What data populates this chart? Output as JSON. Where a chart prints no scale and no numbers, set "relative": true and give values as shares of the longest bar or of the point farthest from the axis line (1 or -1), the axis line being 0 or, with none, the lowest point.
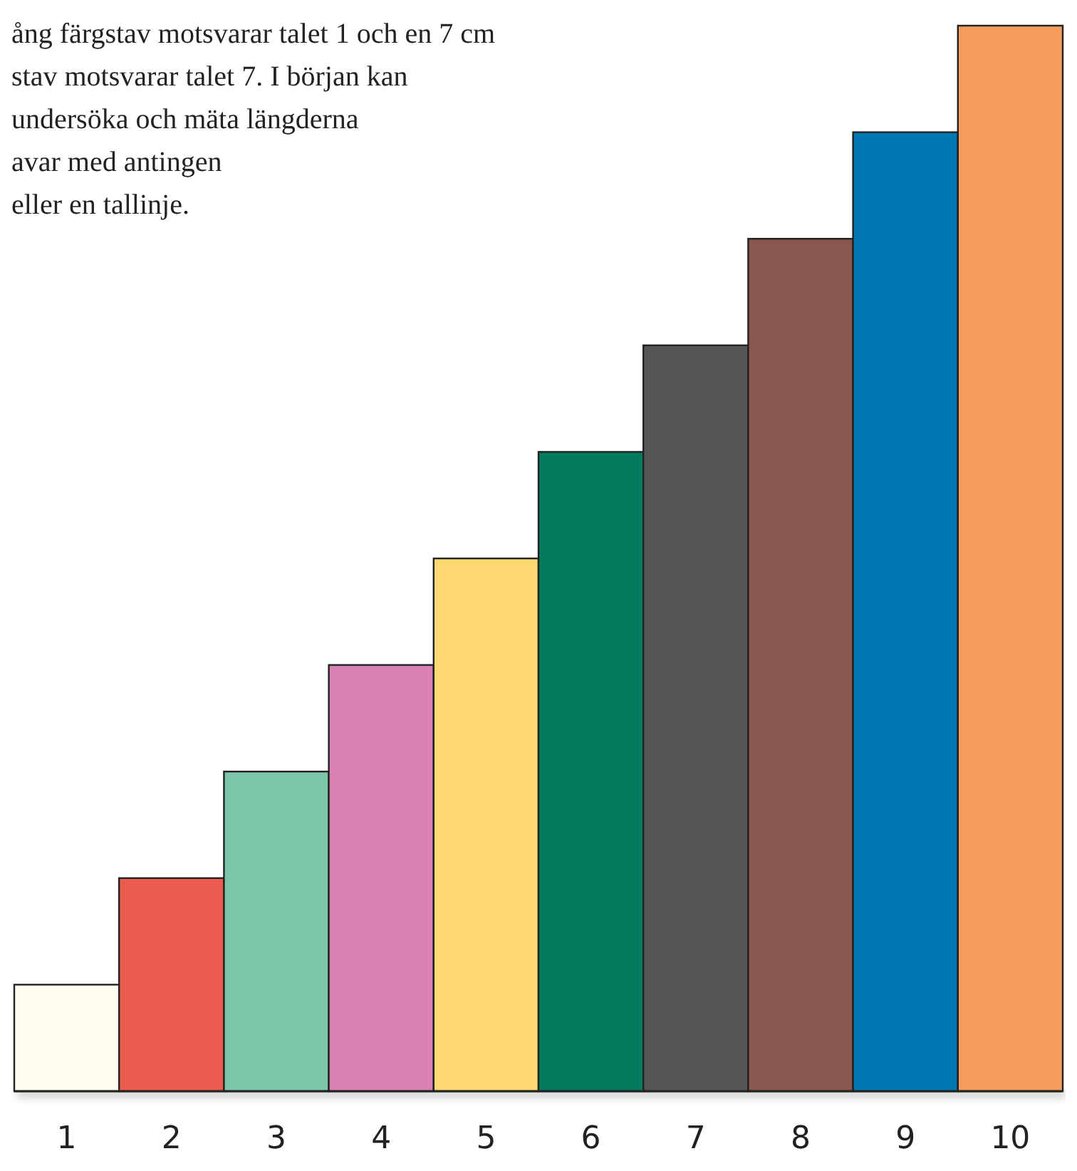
{
  "chart_data": {
    "type": "bar",
    "relative": true,
    "categories": [
      "1",
      "2",
      "3",
      "4",
      "5",
      "6",
      "7",
      "8",
      "9",
      "10"
    ],
    "values": [
      0.1,
      0.2,
      0.3,
      0.4,
      0.5,
      0.6,
      0.7,
      0.8,
      0.9,
      1
    ],
    "colors": [
      "#fffdf0",
      "#ea5c4e",
      "#7dc5a8",
      "#da82b3",
      "#fdd76f",
      "#037a5c",
      "#555553",
      "#89574e",
      "#0078b1",
      "#f39c5c"
    ],
    "annotations": [
      "ång färgstav motsvarar talet 1 och en 7 cm",
      "stav motsvarar talet 7. I början kan",
      "undersöka och mäta längderna",
      "avar med antingen",
      "eller en tallinje."
    ]
  }
}
